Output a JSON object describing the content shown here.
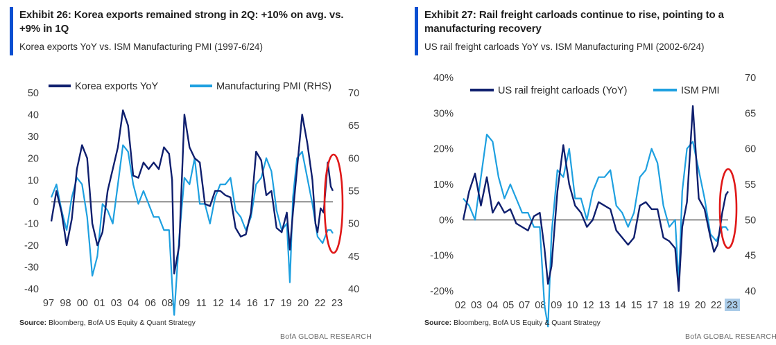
{
  "colors": {
    "accent": "#0a4fd1",
    "dark_series": "#0f1f6e",
    "light_series": "#1ea0e0",
    "highlight": "#e01818",
    "zero_line": "#8c8c8c"
  },
  "panels": [
    {
      "title": "Exhibit 26: Korea exports remained strong in 2Q: +10% on avg. vs. +9% in 1Q",
      "subtitle": "Korea exports YoY vs. ISM Manufacturing PMI (1997-6/24)",
      "source_label": "Source:",
      "source_text": " Bloomberg, BofA US Equity & Quant Strategy",
      "brand": "BofA GLOBAL RESEARCH"
    },
    {
      "title": "Exhibit 27: Rail freight carloads continue to rise, pointing to a manufacturing recovery",
      "subtitle": "US rail freight carloads YoY vs. ISM Manufacturing PMI (2002-6/24)",
      "source_label": "Source:",
      "source_text": " Bloomberg, BofA US Equity & Quant Strategy",
      "brand": "BofA GLOBAL RESEARCH"
    }
  ],
  "chart_data": [
    {
      "type": "line",
      "title": "Korea exports YoY vs. ISM Manufacturing PMI (1997-6/24)",
      "x_ticks": [
        "97",
        "98",
        "00",
        "01",
        "03",
        "04",
        "06",
        "08",
        "09",
        "11",
        "12",
        "14",
        "16",
        "17",
        "19",
        "20",
        "22",
        "23"
      ],
      "x_range": [
        1997.0,
        2024.5
      ],
      "y_left": {
        "ticks": [
          "50",
          "40",
          "30",
          "20",
          "10",
          "0",
          "-10",
          "-20",
          "-30",
          "-40"
        ],
        "range": [
          -40,
          50
        ]
      },
      "y_right": {
        "ticks": [
          "70",
          "65",
          "60",
          "55",
          "50",
          "45",
          "40"
        ],
        "range": [
          40,
          70
        ]
      },
      "zero_line": 0,
      "highlight": "red ellipse around mid-2023 to mid-2024",
      "series": [
        {
          "name": "Korea exports YoY",
          "axis": "left",
          "x": [
            1997.0,
            1997.5,
            1998.0,
            1998.5,
            1999.0,
            1999.5,
            2000.0,
            2000.5,
            2001.0,
            2001.5,
            2002.0,
            2002.5,
            2003.0,
            2003.5,
            2004.0,
            2004.5,
            2005.0,
            2005.5,
            2006.0,
            2006.5,
            2007.0,
            2007.5,
            2008.0,
            2008.5,
            2008.8,
            2009.0,
            2009.5,
            2010.0,
            2010.5,
            2011.0,
            2011.5,
            2012.0,
            2012.5,
            2013.0,
            2013.5,
            2014.0,
            2014.5,
            2015.0,
            2015.5,
            2016.0,
            2016.5,
            2017.0,
            2017.5,
            2018.0,
            2018.5,
            2019.0,
            2019.5,
            2020.0,
            2020.3,
            2020.6,
            2021.0,
            2021.5,
            2022.0,
            2022.5,
            2022.8,
            2023.0,
            2023.3,
            2023.6,
            2024.0,
            2024.3,
            2024.5
          ],
          "y": [
            -9,
            5,
            -5,
            -20,
            -8,
            15,
            26,
            20,
            -10,
            -20,
            -14,
            5,
            15,
            25,
            42,
            35,
            12,
            11,
            18,
            15,
            18,
            15,
            25,
            22,
            10,
            -33,
            -20,
            40,
            25,
            20,
            18,
            -1,
            -2,
            5,
            5,
            3,
            2,
            -12,
            -16,
            -15,
            -5,
            23,
            19,
            3,
            5,
            -12,
            -14,
            -5,
            -22,
            -5,
            15,
            40,
            27,
            10,
            -10,
            -14,
            -3,
            -5,
            18,
            7,
            5
          ]
        },
        {
          "name": "Manufacturing PMI (RHS)",
          "axis": "right",
          "x": [
            1997.0,
            1997.5,
            1998.0,
            1998.5,
            1999.0,
            1999.5,
            2000.0,
            2000.5,
            2001.0,
            2001.5,
            2002.0,
            2002.5,
            2003.0,
            2003.5,
            2004.0,
            2004.5,
            2005.0,
            2005.5,
            2006.0,
            2006.5,
            2007.0,
            2007.5,
            2008.0,
            2008.5,
            2008.9,
            2009.0,
            2009.5,
            2010.0,
            2010.5,
            2011.0,
            2011.5,
            2012.0,
            2012.5,
            2013.0,
            2013.5,
            2014.0,
            2014.5,
            2015.0,
            2015.5,
            2016.0,
            2016.5,
            2017.0,
            2017.5,
            2018.0,
            2018.5,
            2019.0,
            2019.5,
            2020.0,
            2020.3,
            2020.6,
            2021.0,
            2021.5,
            2022.0,
            2022.5,
            2022.8,
            2023.0,
            2023.5,
            2024.0,
            2024.3,
            2024.5
          ],
          "y": [
            54,
            56,
            52,
            49,
            54,
            57,
            56,
            51,
            42,
            45,
            53,
            52,
            50,
            56,
            62,
            61,
            56,
            53,
            55,
            53,
            51,
            51,
            49,
            49,
            38,
            36,
            48,
            57,
            56,
            60,
            53,
            53,
            50,
            54,
            56,
            56,
            57,
            52,
            51,
            49,
            51,
            56,
            57,
            60,
            58,
            52,
            49,
            50,
            41,
            54,
            60,
            61,
            57,
            53,
            50,
            48,
            47,
            49,
            49,
            48.5
          ]
        }
      ]
    },
    {
      "type": "line",
      "title": "US rail freight carloads YoY vs. ISM Manufacturing PMI (2002-6/24)",
      "x_ticks": [
        "02",
        "03",
        "04",
        "05",
        "07",
        "08",
        "09",
        "10",
        "12",
        "13",
        "14",
        "15",
        "17",
        "18",
        "19",
        "20",
        "22",
        "23"
      ],
      "x_range": [
        2002.0,
        2024.5
      ],
      "y_left": {
        "ticks": [
          "40%",
          "30%",
          "20%",
          "10%",
          "0%",
          "-10%",
          "-20%"
        ],
        "range": [
          -20,
          40
        ]
      },
      "y_right": {
        "ticks": [
          "70",
          "65",
          "60",
          "55",
          "50",
          "45",
          "40"
        ],
        "range": [
          40,
          70
        ]
      },
      "zero_line": 0,
      "highlight": "red ellipse around mid-2023 to mid-2024",
      "series": [
        {
          "name": "US rail freight carloads (YoY)",
          "axis": "left",
          "x": [
            2002.0,
            2002.5,
            2003.0,
            2003.5,
            2004.0,
            2004.5,
            2005.0,
            2005.5,
            2006.0,
            2006.5,
            2007.0,
            2007.5,
            2008.0,
            2008.5,
            2008.9,
            2009.2,
            2009.5,
            2010.0,
            2010.5,
            2011.0,
            2011.5,
            2012.0,
            2012.5,
            2013.0,
            2013.5,
            2014.0,
            2014.5,
            2015.0,
            2015.5,
            2016.0,
            2016.5,
            2017.0,
            2017.5,
            2018.0,
            2018.5,
            2019.0,
            2019.5,
            2020.0,
            2020.3,
            2020.6,
            2021.0,
            2021.5,
            2022.0,
            2022.5,
            2023.0,
            2023.3,
            2023.6,
            2024.0,
            2024.3,
            2024.5
          ],
          "y": [
            0,
            8,
            13,
            4,
            12,
            2,
            5,
            2,
            3,
            -1,
            -2,
            -3,
            1,
            2,
            -8,
            -18,
            -13,
            8,
            21,
            10,
            4,
            2,
            -2,
            0,
            5,
            4,
            3,
            -3,
            -5,
            -7,
            -5,
            4,
            5,
            3,
            3,
            -5,
            -6,
            -8,
            -20,
            -2,
            5,
            32,
            6,
            3,
            -5,
            -9,
            -7,
            2,
            7,
            8
          ]
        },
        {
          "name": "ISM PMI",
          "axis": "right",
          "x": [
            2002.0,
            2002.5,
            2003.0,
            2003.5,
            2004.0,
            2004.5,
            2005.0,
            2005.5,
            2006.0,
            2006.5,
            2007.0,
            2007.5,
            2008.0,
            2008.5,
            2008.9,
            2009.2,
            2009.5,
            2010.0,
            2010.5,
            2011.0,
            2011.5,
            2012.0,
            2012.5,
            2013.0,
            2013.5,
            2014.0,
            2014.5,
            2015.0,
            2015.5,
            2016.0,
            2016.5,
            2017.0,
            2017.5,
            2018.0,
            2018.5,
            2019.0,
            2019.5,
            2020.0,
            2020.3,
            2020.6,
            2021.0,
            2021.5,
            2022.0,
            2022.5,
            2023.0,
            2023.5,
            2024.0,
            2024.3,
            2024.5
          ],
          "y": [
            53,
            52,
            50,
            56,
            62,
            61,
            56,
            53,
            55,
            53,
            51,
            51,
            49,
            49,
            38,
            35,
            48,
            57,
            56,
            60,
            53,
            53,
            50,
            54,
            56,
            56,
            57,
            52,
            51,
            49,
            51,
            56,
            57,
            60,
            58,
            52,
            49,
            50,
            41,
            54,
            60,
            61,
            57,
            53,
            48,
            47,
            49,
            49,
            48.5
          ]
        }
      ]
    }
  ]
}
